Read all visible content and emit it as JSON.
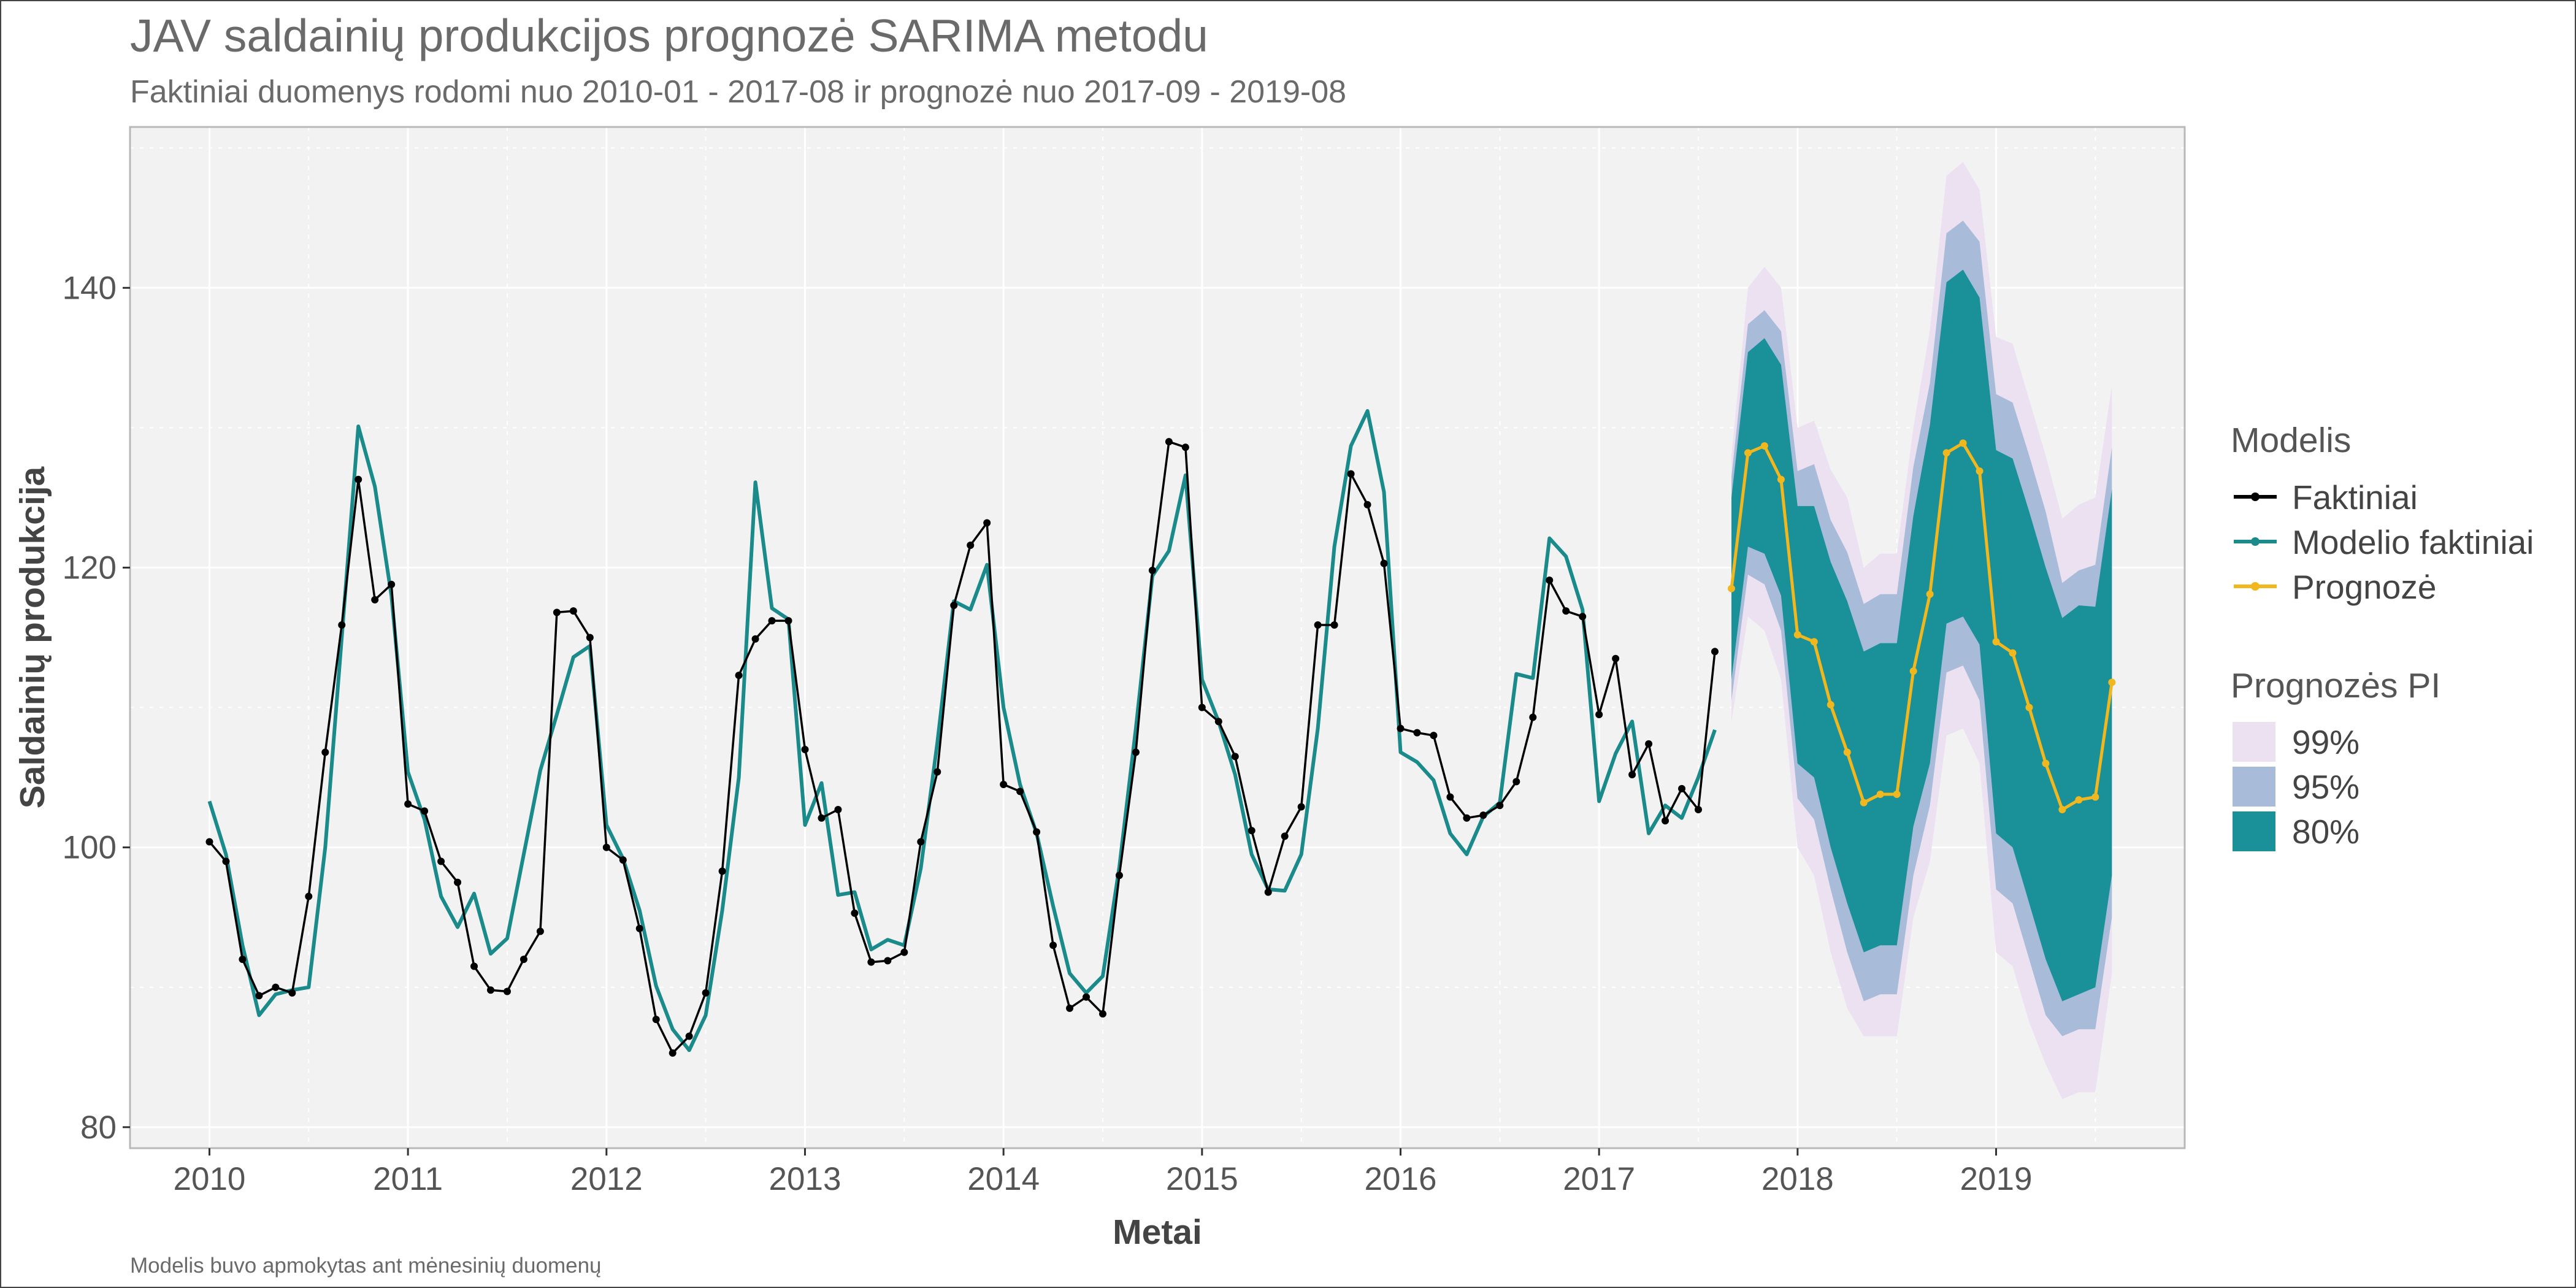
{
  "chart_data": {
    "type": "line",
    "title": "JAV saldainių produkcijos prognozė SARIMA metodu",
    "subtitle": "Faktiniai duomenys rodomi nuo 2010-01 - 2017-08 ir prognozė nuo 2017-09 - 2019-08",
    "caption": "Modelis buvo apmokytas ant mėnesinių duomenų",
    "xlabel": "Metai",
    "ylabel": "Saldainių produkcija",
    "xlim": [
      2009.6,
      2019.95
    ],
    "ylim": [
      78.5,
      151.5
    ],
    "x_ticks": [
      2010,
      2011,
      2012,
      2013,
      2014,
      2015,
      2016,
      2017,
      2018,
      2019
    ],
    "y_ticks": [
      80,
      100,
      120,
      140
    ],
    "grid": true,
    "legend_position": "right",
    "colors": {
      "actual": "#000000",
      "fitted": "#1a8a8a",
      "forecast": "#f0b71e",
      "pi99": "#ebe1f1",
      "pi95": "#a8bcd9",
      "pi80": "#1a9098",
      "panel": "#f2f2f2",
      "grid": "#ffffff"
    },
    "legend": {
      "model_title": "Modelis",
      "model_items": [
        "Faktiniai",
        "Modelio faktiniai",
        "Prognozė"
      ],
      "pi_title": "Prognozės PI",
      "pi_items": [
        "99%",
        "95%",
        "80%"
      ]
    },
    "actual": {
      "name": "Faktiniai",
      "start": "2010-01",
      "values": [
        100.4,
        99.0,
        92.0,
        89.4,
        90.0,
        89.6,
        96.5,
        106.8,
        115.9,
        126.3,
        117.7,
        118.8,
        103.1,
        102.6,
        99.0,
        97.5,
        91.5,
        89.8,
        89.7,
        92.0,
        94.0,
        116.8,
        116.9,
        115.0,
        100.0,
        99.1,
        94.2,
        87.7,
        85.3,
        86.5,
        89.6,
        98.3,
        112.3,
        114.9,
        116.2,
        116.2,
        107.0,
        102.1,
        102.7,
        95.3,
        91.8,
        91.9,
        92.5,
        100.4,
        105.4,
        117.3,
        121.6,
        123.2,
        104.5,
        104.0,
        101.1,
        93.0,
        88.5,
        89.3,
        88.1,
        98.0,
        106.8,
        119.8,
        129.0,
        128.6,
        110.0,
        109.0,
        106.5,
        101.2,
        96.8,
        100.8,
        102.9,
        115.9,
        115.9,
        126.7,
        124.5,
        120.3,
        108.5,
        108.2,
        108.0,
        103.6,
        102.1,
        102.3,
        103.0,
        104.7,
        109.3,
        119.1,
        116.9,
        116.5,
        109.5,
        113.5,
        105.2,
        107.4,
        101.9,
        104.2,
        102.7,
        114.0
      ]
    },
    "fitted": {
      "name": "Modelio faktiniai",
      "start": "2010-01",
      "values": [
        103.3,
        99.5,
        93.0,
        88.0,
        89.5,
        89.8,
        90.0,
        100.0,
        115.0,
        130.1,
        125.8,
        118.0,
        105.4,
        102.0,
        96.5,
        94.3,
        96.7,
        92.4,
        93.5,
        99.5,
        105.5,
        109.5,
        113.6,
        114.4,
        101.6,
        99.2,
        95.5,
        90.1,
        87.0,
        85.5,
        88.0,
        95.5,
        105.0,
        126.1,
        117.1,
        116.3,
        101.6,
        104.6,
        96.6,
        96.8,
        92.7,
        93.4,
        93.0,
        98.5,
        107.5,
        117.6,
        117.0,
        120.2,
        110.0,
        104.5,
        101.0,
        95.8,
        91.0,
        89.6,
        90.8,
        98.6,
        108.5,
        119.4,
        121.2,
        126.6,
        112.0,
        109.0,
        105.2,
        99.5,
        97.0,
        96.9,
        99.5,
        108.5,
        121.5,
        128.7,
        131.2,
        125.4,
        106.8,
        106.1,
        104.8,
        101.0,
        99.5,
        102.2,
        103.2,
        112.4,
        112.1,
        122.1,
        120.8,
        117.0,
        103.3,
        106.7,
        109.0,
        101.0,
        103.0,
        102.1,
        105.0,
        108.4
      ]
    },
    "forecast": {
      "name": "Prognozė",
      "start": "2017-09",
      "values": [
        118.5,
        128.2,
        128.7,
        126.3,
        115.2,
        114.7,
        110.2,
        106.8,
        103.2,
        103.8,
        103.8,
        112.6,
        118.1,
        128.2,
        128.9,
        126.9,
        114.7,
        113.9,
        110.0,
        106.0,
        102.7,
        103.4,
        103.6,
        111.8
      ],
      "pi80": {
        "lower": [
          112.0,
          121.5,
          121.0,
          118.0,
          106.0,
          105.0,
          100.0,
          96.0,
          92.5,
          93.0,
          93.0,
          101.5,
          106.0,
          116.0,
          116.5,
          114.5,
          101.0,
          100.0,
          96.0,
          92.0,
          89.0,
          89.5,
          90.0,
          98.0
        ],
        "upper": [
          125.0,
          135.4,
          136.4,
          134.5,
          124.4,
          124.4,
          120.4,
          117.6,
          114.0,
          114.6,
          114.6,
          123.7,
          130.2,
          140.4,
          141.3,
          139.3,
          128.4,
          127.8,
          124.0,
          120.0,
          116.4,
          117.3,
          117.2,
          125.6
        ]
      },
      "pi95": {
        "lower": [
          110.5,
          119.5,
          118.8,
          115.5,
          103.5,
          102.0,
          97.0,
          92.5,
          89.0,
          89.5,
          89.5,
          98.0,
          103.0,
          112.5,
          113.0,
          110.5,
          97.0,
          96.0,
          92.0,
          88.0,
          86.5,
          87.0,
          87.0,
          95.0
        ],
        "upper": [
          126.5,
          137.4,
          138.4,
          136.9,
          126.9,
          127.4,
          123.4,
          121.1,
          117.4,
          118.1,
          118.1,
          127.2,
          133.2,
          143.9,
          144.8,
          143.3,
          132.4,
          131.8,
          128.0,
          124.0,
          118.9,
          119.8,
          120.2,
          128.6
        ]
      },
      "pi99": {
        "lower": [
          109.0,
          116.5,
          115.5,
          112.0,
          100.0,
          98.0,
          92.5,
          88.5,
          86.5,
          86.5,
          86.5,
          95.0,
          99.0,
          108.0,
          108.5,
          106.0,
          92.5,
          91.5,
          87.5,
          84.5,
          82.0,
          82.5,
          82.5,
          91.0
        ],
        "upper": [
          128.0,
          140.0,
          141.5,
          140.0,
          130.0,
          130.5,
          127.0,
          125.0,
          120.0,
          121.0,
          121.0,
          130.0,
          137.0,
          148.0,
          149.0,
          147.0,
          136.5,
          136.0,
          132.0,
          128.0,
          123.5,
          124.5,
          125.0,
          133.0
        ]
      }
    }
  }
}
